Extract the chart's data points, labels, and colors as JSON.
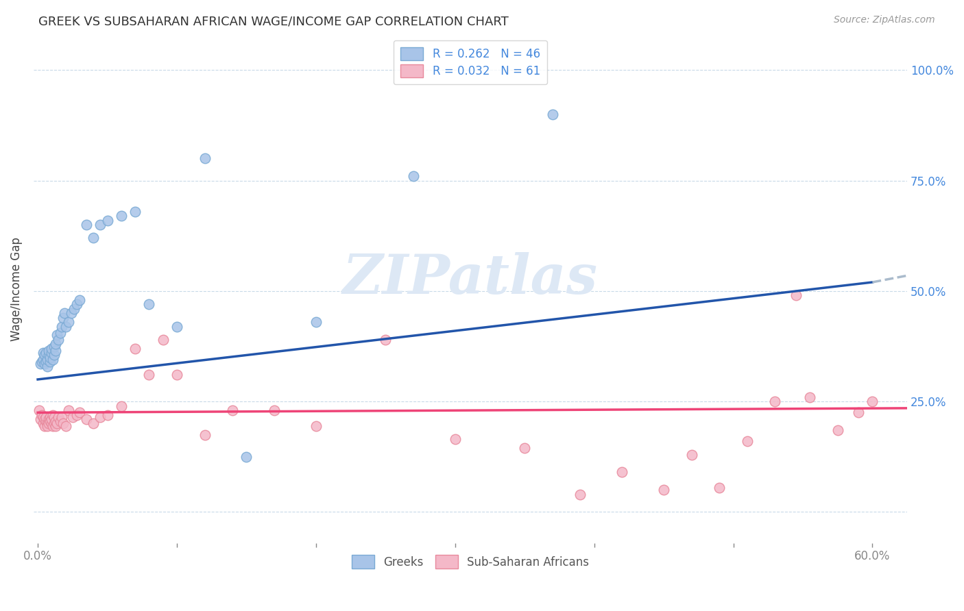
{
  "title": "GREEK VS SUBSAHARAN AFRICAN WAGE/INCOME GAP CORRELATION CHART",
  "source": "Source: ZipAtlas.com",
  "ylabel": "Wage/Income Gap",
  "blue_R": 0.262,
  "blue_N": 46,
  "pink_R": 0.032,
  "pink_N": 61,
  "blue_color": "#a8c4e8",
  "blue_edge_color": "#7aaad4",
  "pink_color": "#f4b8c8",
  "pink_edge_color": "#e8899c",
  "blue_line_color": "#2255aa",
  "pink_line_color": "#ee4477",
  "dashed_line_color": "#aabbcc",
  "watermark_text": "ZIPatlas",
  "watermark_color": "#dde8f5",
  "xlim": [
    -0.003,
    0.625
  ],
  "ylim": [
    -0.07,
    1.08
  ],
  "xticks": [
    0.0,
    0.1,
    0.2,
    0.3,
    0.4,
    0.5,
    0.6
  ],
  "xtick_labels": [
    "0.0%",
    "",
    "",
    "",
    "",
    "",
    "60.0%"
  ],
  "yticks": [
    0.0,
    0.25,
    0.5,
    0.75,
    1.0
  ],
  "ytick_labels_right": [
    "",
    "25.0%",
    "50.0%",
    "75.0%",
    "100.0%"
  ],
  "blue_line": [
    0.0,
    0.3,
    0.6,
    0.52
  ],
  "blue_dashed": [
    0.6,
    0.52,
    0.625,
    0.535
  ],
  "pink_line": [
    0.0,
    0.225,
    0.625,
    0.235
  ],
  "blue_scatter_x": [
    0.002,
    0.003,
    0.004,
    0.004,
    0.005,
    0.005,
    0.006,
    0.006,
    0.007,
    0.007,
    0.008,
    0.008,
    0.009,
    0.009,
    0.01,
    0.01,
    0.011,
    0.012,
    0.012,
    0.013,
    0.013,
    0.014,
    0.015,
    0.016,
    0.017,
    0.018,
    0.019,
    0.02,
    0.022,
    0.024,
    0.026,
    0.028,
    0.03,
    0.035,
    0.04,
    0.045,
    0.05,
    0.06,
    0.07,
    0.08,
    0.1,
    0.12,
    0.15,
    0.2,
    0.27,
    0.37
  ],
  "blue_scatter_y": [
    0.335,
    0.34,
    0.345,
    0.36,
    0.335,
    0.355,
    0.34,
    0.36,
    0.33,
    0.345,
    0.355,
    0.365,
    0.34,
    0.35,
    0.36,
    0.37,
    0.345,
    0.355,
    0.375,
    0.365,
    0.38,
    0.4,
    0.39,
    0.405,
    0.42,
    0.44,
    0.45,
    0.42,
    0.43,
    0.45,
    0.46,
    0.47,
    0.48,
    0.65,
    0.62,
    0.65,
    0.66,
    0.67,
    0.68,
    0.47,
    0.42,
    0.8,
    0.125,
    0.43,
    0.76,
    0.9
  ],
  "pink_scatter_x": [
    0.001,
    0.002,
    0.003,
    0.004,
    0.004,
    0.005,
    0.005,
    0.006,
    0.006,
    0.007,
    0.007,
    0.008,
    0.008,
    0.009,
    0.009,
    0.01,
    0.01,
    0.011,
    0.011,
    0.012,
    0.012,
    0.013,
    0.013,
    0.014,
    0.015,
    0.016,
    0.017,
    0.018,
    0.02,
    0.022,
    0.025,
    0.028,
    0.03,
    0.035,
    0.04,
    0.045,
    0.05,
    0.06,
    0.07,
    0.08,
    0.09,
    0.1,
    0.12,
    0.14,
    0.17,
    0.2,
    0.25,
    0.3,
    0.35,
    0.39,
    0.42,
    0.45,
    0.47,
    0.49,
    0.51,
    0.53,
    0.545,
    0.555,
    0.575,
    0.59,
    0.6
  ],
  "pink_scatter_y": [
    0.23,
    0.21,
    0.22,
    0.2,
    0.215,
    0.195,
    0.21,
    0.205,
    0.215,
    0.2,
    0.195,
    0.21,
    0.2,
    0.215,
    0.205,
    0.2,
    0.21,
    0.195,
    0.22,
    0.2,
    0.215,
    0.195,
    0.205,
    0.2,
    0.215,
    0.205,
    0.215,
    0.2,
    0.195,
    0.23,
    0.215,
    0.22,
    0.225,
    0.21,
    0.2,
    0.215,
    0.22,
    0.24,
    0.37,
    0.31,
    0.39,
    0.31,
    0.175,
    0.23,
    0.23,
    0.195,
    0.39,
    0.165,
    0.145,
    0.04,
    0.09,
    0.05,
    0.13,
    0.055,
    0.16,
    0.25,
    0.49,
    0.26,
    0.185,
    0.225,
    0.25
  ]
}
